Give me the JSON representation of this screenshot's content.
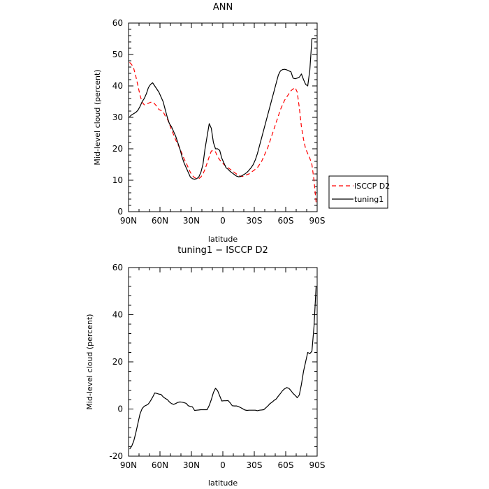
{
  "chart_data": [
    {
      "type": "line",
      "title": "ANN",
      "xlabel": "latitude",
      "ylabel": "Mid-level cloud (percent)",
      "ylim": [
        0,
        60
      ],
      "yticks": [
        0,
        10,
        20,
        30,
        40,
        50,
        60
      ],
      "xlim": [
        90,
        -90
      ],
      "xticks": [
        90,
        60,
        30,
        0,
        -30,
        -60,
        -90
      ],
      "xtick_labels": [
        "90N",
        "60N",
        "30N",
        "0",
        "30S",
        "60S",
        "90S"
      ],
      "legend_position": "right",
      "series": [
        {
          "name": "ISCCP D2",
          "color": "#ff0000",
          "dash": "dashed",
          "x": [
            89,
            87,
            85,
            83,
            81,
            79,
            77,
            75,
            73,
            71,
            69,
            67,
            65,
            63,
            61,
            59,
            57,
            55,
            53,
            51,
            49,
            47,
            45,
            43,
            41,
            39,
            37,
            35,
            33,
            31,
            29,
            27,
            25,
            23,
            21,
            19,
            17,
            15,
            13,
            11,
            9,
            7,
            5,
            3,
            1,
            -1,
            -3,
            -5,
            -7,
            -9,
            -11,
            -13,
            -15,
            -17,
            -19,
            -21,
            -23,
            -25,
            -27,
            -29,
            -31,
            -33,
            -35,
            -37,
            -39,
            -41,
            -43,
            -45,
            -47,
            -49,
            -51,
            -53,
            -55,
            -57,
            -59,
            -61,
            -63,
            -65,
            -67,
            -69,
            -71,
            -73,
            -75,
            -77,
            -79,
            -81,
            -83,
            -85,
            -87,
            -89
          ],
          "values": [
            47.5,
            46.8,
            45.5,
            43.0,
            40.0,
            37.0,
            34.8,
            34.0,
            34.2,
            34.5,
            34.8,
            34.8,
            34.3,
            33.5,
            32.5,
            32.2,
            31.8,
            30.5,
            29.5,
            28.0,
            26.0,
            24.5,
            22.8,
            21.5,
            20.0,
            18.5,
            16.8,
            15.5,
            14.0,
            12.5,
            11.5,
            10.8,
            10.6,
            10.5,
            11.0,
            12.0,
            13.5,
            15.5,
            17.5,
            19.3,
            19.5,
            19.0,
            17.5,
            16.5,
            15.8,
            15.0,
            14.5,
            14.0,
            13.5,
            13.0,
            12.5,
            12.0,
            11.5,
            11.3,
            11.2,
            11.5,
            11.8,
            12.0,
            12.5,
            13.0,
            13.5,
            14.0,
            15.0,
            16.0,
            17.5,
            19.0,
            20.5,
            22.5,
            24.5,
            26.5,
            28.5,
            30.5,
            32.5,
            34.0,
            35.5,
            36.5,
            37.5,
            38.5,
            39.0,
            39.5,
            38.0,
            33.0,
            27.0,
            23.0,
            20.0,
            18.5,
            17.0,
            15.0,
            10.0,
            3.0
          ]
        },
        {
          "name": "tuning1",
          "color": "#000000",
          "dash": "solid",
          "x": [
            89,
            87,
            85,
            83,
            81,
            79,
            77,
            75,
            73,
            71,
            69,
            67,
            65,
            63,
            61,
            59,
            57,
            55,
            53,
            51,
            49,
            47,
            45,
            43,
            41,
            39,
            37,
            35,
            33,
            31,
            29,
            27,
            25,
            23,
            21,
            19,
            17,
            15,
            13,
            11,
            9,
            7,
            5,
            3,
            1,
            -1,
            -3,
            -5,
            -7,
            -9,
            -11,
            -13,
            -15,
            -17,
            -19,
            -21,
            -23,
            -25,
            -27,
            -29,
            -31,
            -33,
            -35,
            -37,
            -39,
            -41,
            -43,
            -45,
            -47,
            -49,
            -51,
            -53,
            -55,
            -57,
            -59,
            -61,
            -63,
            -65,
            -67,
            -69,
            -71,
            -73,
            -75,
            -77,
            -79,
            -81,
            -83,
            -85,
            -87,
            -89
          ],
          "values": [
            30.2,
            30.8,
            31.2,
            31.6,
            32.3,
            33.5,
            35.0,
            36.0,
            37.5,
            39.5,
            40.5,
            41.0,
            40.0,
            39.0,
            38.0,
            36.5,
            35.0,
            32.5,
            30.0,
            28.0,
            27.0,
            25.5,
            24.0,
            22.0,
            20.0,
            17.5,
            15.5,
            14.0,
            12.5,
            11.0,
            10.5,
            10.3,
            10.5,
            11.0,
            12.5,
            15.0,
            20.0,
            24.0,
            28.0,
            26.5,
            22.0,
            20.0,
            20.0,
            19.5,
            17.0,
            15.5,
            14.0,
            13.5,
            12.8,
            12.3,
            11.8,
            11.3,
            11.1,
            11.2,
            11.6,
            12.0,
            12.5,
            13.2,
            14.0,
            15.0,
            16.5,
            18.5,
            21.0,
            23.5,
            26.0,
            28.5,
            31.0,
            33.5,
            36.0,
            38.5,
            41.0,
            43.5,
            44.8,
            45.2,
            45.3,
            45.1,
            44.8,
            44.5,
            42.5,
            42.3,
            42.5,
            42.8,
            43.8,
            42.0,
            40.5,
            40.0,
            45.0,
            55.0,
            55.0,
            55.0
          ]
        }
      ]
    },
    {
      "type": "line",
      "title": "tuning1 − ISCCP D2",
      "xlabel": "latitude",
      "ylabel": "Mid-level cloud (percent)",
      "ylim": [
        -20,
        60
      ],
      "yticks": [
        -20,
        0,
        20,
        40,
        60
      ],
      "xlim": [
        90,
        -90
      ],
      "xticks": [
        90,
        60,
        30,
        0,
        -30,
        -60,
        -90
      ],
      "xtick_labels": [
        "90N",
        "60N",
        "30N",
        "0",
        "30S",
        "60S",
        "90S"
      ],
      "series": [
        {
          "color": "#000000",
          "dash": "solid",
          "x": [
            89,
            87,
            85,
            83,
            81,
            79,
            77,
            75,
            73,
            71,
            69,
            67,
            65,
            63,
            61,
            59,
            57,
            55,
            53,
            51,
            49,
            47,
            45,
            43,
            41,
            39,
            37,
            35,
            33,
            31,
            29,
            27,
            25,
            23,
            21,
            19,
            17,
            15,
            13,
            11,
            9,
            7,
            5,
            3,
            1,
            -1,
            -3,
            -5,
            -7,
            -9,
            -11,
            -13,
            -15,
            -17,
            -19,
            -21,
            -23,
            -25,
            -27,
            -29,
            -31,
            -33,
            -35,
            -37,
            -39,
            -41,
            -43,
            -45,
            -47,
            -49,
            -51,
            -53,
            -55,
            -57,
            -59,
            -61,
            -63,
            -65,
            -67,
            -69,
            -71,
            -73,
            -75,
            -77,
            -79,
            -81,
            -83,
            -85,
            -87,
            -89
          ],
          "values": [
            -17.0,
            -15.8,
            -13.5,
            -10.0,
            -6.0,
            -2.0,
            0.2,
            1.2,
            1.6,
            2.2,
            3.5,
            5.0,
            6.8,
            6.6,
            6.3,
            6.2,
            5.2,
            4.5,
            4.0,
            3.0,
            2.3,
            2.0,
            2.3,
            2.8,
            3.0,
            2.9,
            2.7,
            2.4,
            1.4,
            1.1,
            0.9,
            -0.6,
            -0.5,
            -0.4,
            -0.3,
            -0.3,
            -0.3,
            -0.3,
            1.5,
            4.0,
            7.0,
            8.8,
            7.8,
            5.6,
            3.4,
            3.5,
            3.5,
            3.6,
            2.6,
            1.4,
            1.3,
            1.3,
            1.0,
            0.6,
            0.1,
            -0.4,
            -0.6,
            -0.5,
            -0.5,
            -0.5,
            -0.5,
            -0.7,
            -0.5,
            -0.4,
            -0.3,
            0.5,
            1.3,
            2.3,
            2.9,
            3.7,
            4.3,
            5.5,
            6.6,
            7.8,
            8.6,
            9.1,
            8.8,
            7.8,
            6.6,
            5.8,
            4.8,
            6.0,
            10.5,
            16.0,
            20.0,
            24.0,
            23.5,
            24.5,
            35.0,
            52.0
          ]
        }
      ]
    }
  ]
}
